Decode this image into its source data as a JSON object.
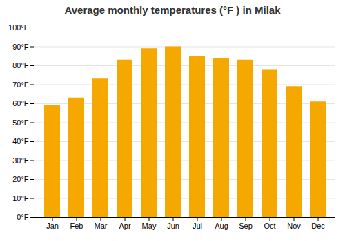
{
  "chart_data": {
    "type": "bar",
    "title": "Average monthly temperatures (°F ) in Milak",
    "categories": [
      "Jan",
      "Feb",
      "Mar",
      "Apr",
      "May",
      "Jun",
      "Jul",
      "Aug",
      "Sep",
      "Oct",
      "Nov",
      "Dec"
    ],
    "values": [
      59,
      63,
      73,
      83,
      89,
      90,
      85,
      84,
      83,
      78,
      69,
      61
    ],
    "color": "#F5A800",
    "ylim": [
      0,
      100
    ],
    "yticks": [
      {
        "value": 0,
        "label": "0°F"
      },
      {
        "value": 10,
        "label": "10°F"
      },
      {
        "value": 20,
        "label": "20°F"
      },
      {
        "value": 30,
        "label": "30°F"
      },
      {
        "value": 40,
        "label": "40°F"
      },
      {
        "value": 50,
        "label": "50°F"
      },
      {
        "value": 60,
        "label": "60°F"
      },
      {
        "value": 70,
        "label": "70°F"
      },
      {
        "value": 80,
        "label": "80°F"
      },
      {
        "value": 90,
        "label": "90°F"
      },
      {
        "value": 100,
        "label": "100°F"
      }
    ],
    "grid": true
  }
}
